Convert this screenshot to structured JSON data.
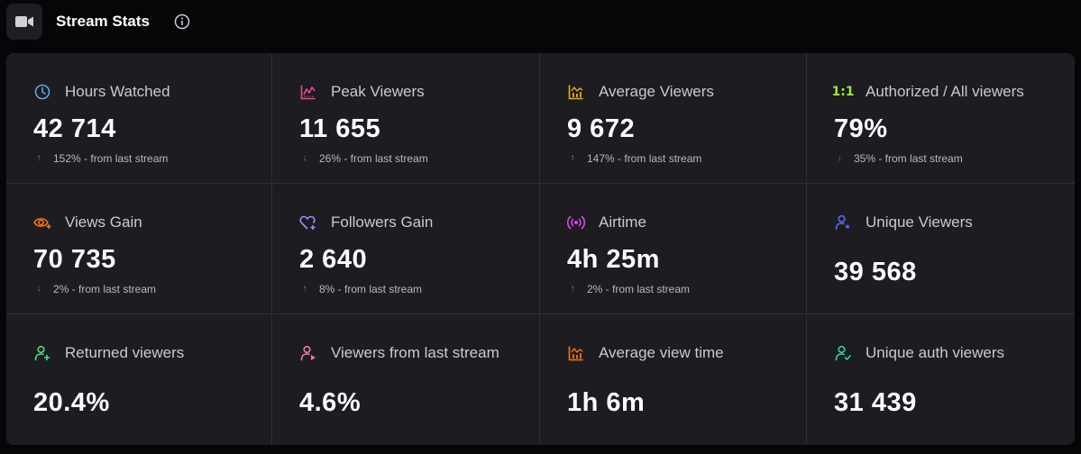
{
  "header": {
    "title": "Stream Stats",
    "icon": "video-camera-icon",
    "info_icon": "info-icon"
  },
  "stats": [
    {
      "label": "Hours Watched",
      "value": "42 714",
      "delta": "152% - from last stream",
      "trend": "up",
      "icon": "clock-icon",
      "color": "#5aa9e6"
    },
    {
      "label": "Peak Viewers",
      "value": "11 655",
      "delta": "26% - from last stream",
      "trend": "down",
      "icon": "line-chart-icon",
      "color": "#ec4899"
    },
    {
      "label": "Average Viewers",
      "value": "9 672",
      "delta": "147% - from last stream",
      "trend": "up",
      "icon": "bar-chart-icon",
      "color": "#eab308"
    },
    {
      "label": "Authorized / All viewers",
      "value": "79%",
      "delta": "35% - from last stream",
      "trend": "down",
      "icon": "ratio-icon",
      "icon_text": "1:1",
      "color": "#a3e635"
    },
    {
      "label": "Views Gain",
      "value": "70 735",
      "delta": "2% - from last stream",
      "trend": "down",
      "icon": "eye-plus-icon",
      "color": "#f97316"
    },
    {
      "label": "Followers Gain",
      "value": "2 640",
      "delta": "8% - from last stream",
      "trend": "up",
      "icon": "heart-plus-icon",
      "color": "#a78bfa"
    },
    {
      "label": "Airtime",
      "value": "4h 25m",
      "delta": "2% - from last stream",
      "trend": "up",
      "icon": "broadcast-icon",
      "color": "#d946ef"
    },
    {
      "label": "Unique Viewers",
      "value": "39 568",
      "icon": "user-star-icon",
      "color": "#6366f1"
    },
    {
      "label": "Returned viewers",
      "value": "20.4%",
      "icon": "user-plus-icon",
      "color": "#4ade80"
    },
    {
      "label": "Viewers from last stream",
      "value": "4.6%",
      "icon": "user-arrow-icon",
      "color": "#f472b6"
    },
    {
      "label": "Average view time",
      "value": "1h 6m",
      "icon": "bar-chart-icon",
      "color": "#f97316"
    },
    {
      "label": "Unique auth viewers",
      "value": "31 439",
      "icon": "user-check-icon",
      "color": "#34d399"
    }
  ]
}
